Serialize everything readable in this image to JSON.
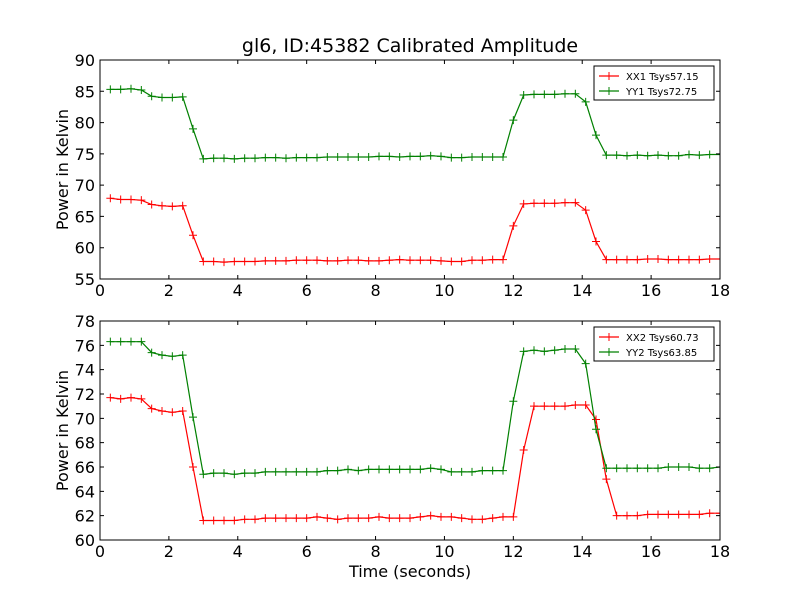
{
  "chart_data": [
    {
      "type": "line",
      "title": "gl6, ID:45382 Calibrated Amplitude",
      "xlabel": "",
      "ylabel": "Power in Kelvin",
      "xlim": [
        0,
        18
      ],
      "ylim": [
        55,
        90
      ],
      "xticks": [
        0,
        2,
        4,
        6,
        8,
        10,
        12,
        14,
        16,
        18
      ],
      "yticks": [
        55,
        60,
        65,
        70,
        75,
        80,
        85,
        90
      ],
      "legend_position": "top-right",
      "x": [
        0.3,
        0.6,
        0.9,
        1.2,
        1.5,
        1.8,
        2.1,
        2.4,
        2.7,
        3.0,
        3.3,
        3.6,
        3.9,
        4.2,
        4.5,
        4.8,
        5.1,
        5.4,
        5.7,
        6.0,
        6.3,
        6.6,
        6.9,
        7.2,
        7.5,
        7.8,
        8.1,
        8.4,
        8.7,
        9.0,
        9.3,
        9.6,
        9.9,
        10.2,
        10.5,
        10.8,
        11.1,
        11.4,
        11.7,
        12.0,
        12.3,
        12.6,
        12.9,
        13.2,
        13.5,
        13.8,
        14.1,
        14.4,
        14.7,
        15.0,
        15.3,
        15.6,
        15.9,
        16.2,
        16.5,
        16.8,
        17.1,
        17.4,
        17.7,
        18.0
      ],
      "series": [
        {
          "name": "XX1 Tsys57.15",
          "color": "#ff0000",
          "values": [
            67.9,
            67.7,
            67.7,
            67.6,
            66.9,
            66.7,
            66.6,
            66.7,
            62.0,
            57.8,
            57.8,
            57.7,
            57.8,
            57.8,
            57.8,
            57.9,
            57.9,
            57.9,
            58.0,
            58.0,
            58.0,
            57.9,
            57.9,
            58.0,
            58.0,
            57.9,
            57.9,
            58.0,
            58.1,
            58.0,
            58.0,
            58.0,
            57.9,
            57.8,
            57.8,
            58.0,
            58.0,
            58.1,
            58.1,
            63.5,
            67.0,
            67.1,
            67.1,
            67.1,
            67.2,
            67.2,
            66.0,
            61.0,
            58.1,
            58.1,
            58.1,
            58.1,
            58.2,
            58.2,
            58.1,
            58.1,
            58.1,
            58.1,
            58.2,
            58.2
          ]
        },
        {
          "name": "YY1 Tsys72.75",
          "color": "#008000",
          "values": [
            85.3,
            85.3,
            85.4,
            85.2,
            84.2,
            84.0,
            84.0,
            84.1,
            79.0,
            74.2,
            74.3,
            74.3,
            74.2,
            74.3,
            74.3,
            74.4,
            74.4,
            74.3,
            74.4,
            74.4,
            74.4,
            74.5,
            74.5,
            74.5,
            74.5,
            74.5,
            74.6,
            74.6,
            74.5,
            74.6,
            74.6,
            74.7,
            74.6,
            74.4,
            74.4,
            74.5,
            74.5,
            74.5,
            74.5,
            80.4,
            84.4,
            84.5,
            84.5,
            84.5,
            84.6,
            84.6,
            83.3,
            78.0,
            74.8,
            74.8,
            74.7,
            74.8,
            74.7,
            74.8,
            74.7,
            74.7,
            74.9,
            74.8,
            74.9,
            74.9
          ]
        }
      ]
    },
    {
      "type": "line",
      "title": "",
      "xlabel": "Time (seconds)",
      "ylabel": "Power in Kelvin",
      "xlim": [
        0,
        18
      ],
      "ylim": [
        60,
        78
      ],
      "xticks": [
        0,
        2,
        4,
        6,
        8,
        10,
        12,
        14,
        16,
        18
      ],
      "yticks": [
        60,
        62,
        64,
        66,
        68,
        70,
        72,
        74,
        76,
        78
      ],
      "legend_position": "top-right",
      "x": [
        0.3,
        0.6,
        0.9,
        1.2,
        1.5,
        1.8,
        2.1,
        2.4,
        2.7,
        3.0,
        3.3,
        3.6,
        3.9,
        4.2,
        4.5,
        4.8,
        5.1,
        5.4,
        5.7,
        6.0,
        6.3,
        6.6,
        6.9,
        7.2,
        7.5,
        7.8,
        8.1,
        8.4,
        8.7,
        9.0,
        9.3,
        9.6,
        9.9,
        10.2,
        10.5,
        10.8,
        11.1,
        11.4,
        11.7,
        12.0,
        12.3,
        12.6,
        12.9,
        13.2,
        13.5,
        13.8,
        14.1,
        14.4,
        14.7,
        15.0,
        15.3,
        15.6,
        15.9,
        16.2,
        16.5,
        16.8,
        17.1,
        17.4,
        17.7,
        18.0
      ],
      "series": [
        {
          "name": "XX2 Tsys60.73",
          "color": "#ff0000",
          "values": [
            71.7,
            71.6,
            71.7,
            71.6,
            70.8,
            70.6,
            70.5,
            70.6,
            66.0,
            61.6,
            61.6,
            61.6,
            61.6,
            61.7,
            61.7,
            61.8,
            61.8,
            61.8,
            61.8,
            61.8,
            61.9,
            61.8,
            61.7,
            61.8,
            61.8,
            61.8,
            61.9,
            61.8,
            61.8,
            61.8,
            61.9,
            62.0,
            61.9,
            61.9,
            61.8,
            61.7,
            61.7,
            61.8,
            61.9,
            61.9,
            67.4,
            71.0,
            71.0,
            71.0,
            71.0,
            71.1,
            71.1,
            69.9,
            65.0,
            62.0,
            62.0,
            62.0,
            62.1,
            62.1,
            62.1,
            62.1,
            62.1,
            62.1,
            62.2,
            62.2
          ]
        },
        {
          "name": "YY2 Tsys63.85",
          "color": "#008000",
          "values": [
            76.3,
            76.3,
            76.3,
            76.3,
            75.4,
            75.2,
            75.1,
            75.2,
            70.1,
            65.4,
            65.5,
            65.5,
            65.4,
            65.5,
            65.5,
            65.6,
            65.6,
            65.6,
            65.6,
            65.6,
            65.6,
            65.7,
            65.7,
            65.8,
            65.7,
            65.8,
            65.8,
            65.8,
            65.8,
            65.8,
            65.8,
            65.9,
            65.8,
            65.6,
            65.6,
            65.6,
            65.7,
            65.7,
            65.7,
            71.4,
            75.5,
            75.6,
            75.5,
            75.6,
            75.7,
            75.7,
            74.5,
            69.1,
            65.9,
            65.9,
            65.9,
            65.9,
            65.9,
            65.9,
            66.0,
            66.0,
            66.0,
            65.9,
            65.9,
            66.0
          ]
        }
      ]
    }
  ]
}
